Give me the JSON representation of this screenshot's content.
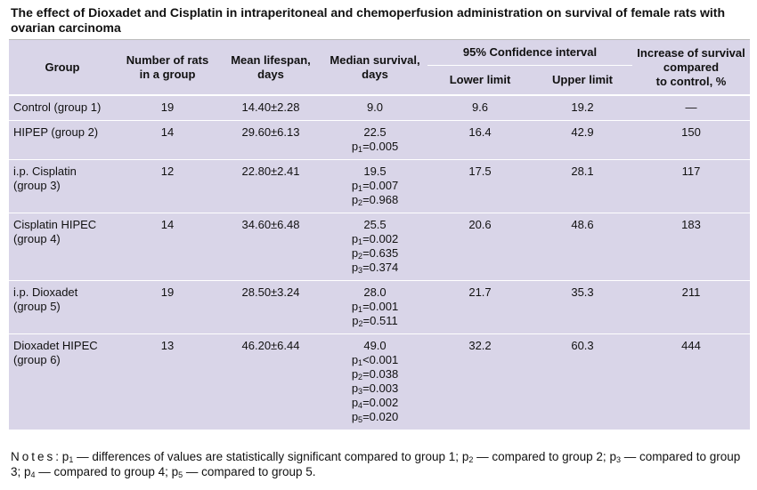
{
  "title": "The effect of Dioxadet and Cisplatin in intraperitoneal and chemoperfusion administration on survival of female rats with ovarian carcinoma",
  "headers": {
    "group": "Group",
    "rats": [
      "Number of rats",
      "in a group"
    ],
    "lifespan": [
      "Mean lifespan,",
      "days"
    ],
    "median": [
      "Median survival,",
      "days"
    ],
    "ci": "95% Confidence interval",
    "lower": "Lower limit",
    "upper": "Upper limit",
    "increase": [
      "Increase of survival",
      "compared",
      "to control, %"
    ]
  },
  "rows": [
    {
      "group": [
        "Control (group 1)"
      ],
      "rats": "19",
      "lifespan": "14.40±2.28",
      "median": "9.0",
      "p": [],
      "lower": "9.6",
      "upper": "19.2",
      "increase": "—"
    },
    {
      "group": [
        "HIPEP (group 2)"
      ],
      "rats": "14",
      "lifespan": "29.60±6.13",
      "median": "22.5",
      "p": [
        {
          "i": "1",
          "v": "=0.005"
        }
      ],
      "lower": "16.4",
      "upper": "42.9",
      "increase": "150"
    },
    {
      "group": [
        "i.p. Cisplatin",
        "(group 3)"
      ],
      "rats": "12",
      "lifespan": "22.80±2.41",
      "median": "19.5",
      "p": [
        {
          "i": "1",
          "v": "=0.007"
        },
        {
          "i": "2",
          "v": "=0.968"
        }
      ],
      "lower": "17.5",
      "upper": "28.1",
      "increase": "117"
    },
    {
      "group": [
        "Cisplatin HIPEC",
        "(group 4)"
      ],
      "rats": "14",
      "lifespan": "34.60±6.48",
      "median": "25.5",
      "p": [
        {
          "i": "1",
          "v": "=0.002"
        },
        {
          "i": "2",
          "v": "=0.635"
        },
        {
          "i": "3",
          "v": "=0.374"
        }
      ],
      "lower": "20.6",
      "upper": "48.6",
      "increase": "183"
    },
    {
      "group": [
        "i.p. Dioxadet",
        "(group 5)"
      ],
      "rats": "19",
      "lifespan": "28.50±3.24",
      "median": "28.0",
      "p": [
        {
          "i": "1",
          "v": "=0.001"
        },
        {
          "i": "2",
          "v": "=0.511"
        }
      ],
      "lower": "21.7",
      "upper": "35.3",
      "increase": "211"
    },
    {
      "group": [
        "Dioxadet HIPEC",
        "(group 6)"
      ],
      "rats": "13",
      "lifespan": "46.20±6.44",
      "median": "49.0",
      "p": [
        {
          "i": "1",
          "v": "<0.001"
        },
        {
          "i": "2",
          "v": "=0.038"
        },
        {
          "i": "3",
          "v": "=0.003"
        },
        {
          "i": "4",
          "v": "=0.002"
        },
        {
          "i": "5",
          "v": "=0.020"
        }
      ],
      "lower": "32.2",
      "upper": "60.3",
      "increase": "444"
    }
  ],
  "notes": {
    "label": "Notes",
    "parts": [
      {
        "i": "1",
        "text": " — differences of values are statistically significant compared to group 1; "
      },
      {
        "i": "2",
        "text": " — compared to group 2; "
      },
      {
        "i": "3",
        "text": " — compared to group 3; "
      },
      {
        "i": "4",
        "text": " — compared to group 4; "
      },
      {
        "i": "5",
        "text": " — compared to group 5."
      }
    ]
  },
  "colors": {
    "table_bg": "#d9d5e8",
    "rule": "#ffffff"
  }
}
